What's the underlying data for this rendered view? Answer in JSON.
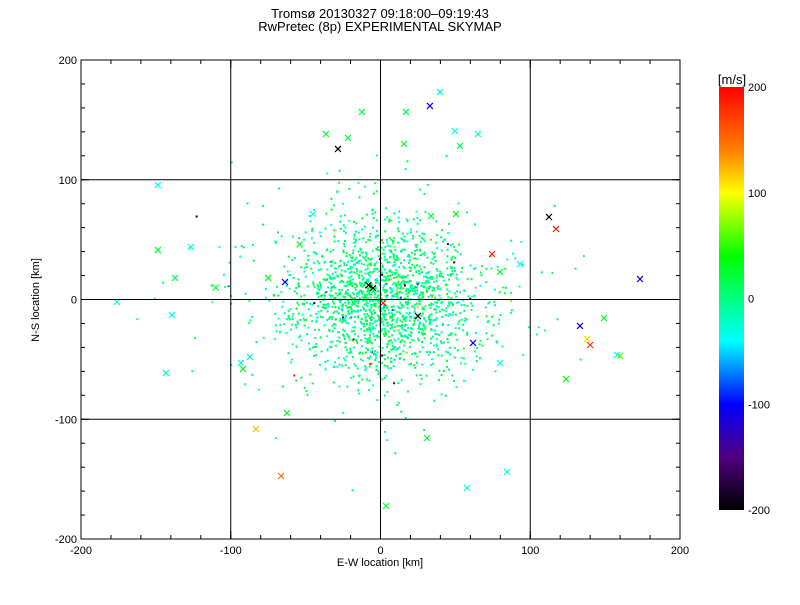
{
  "chart_data": {
    "type": "scatter",
    "title": [
      "Tromsø 20130327 09:18:00–09:19:43",
      "RwPretec (8p) EXPERIMENTAL SKYMAP"
    ],
    "xlabel": "E-W location [km]",
    "ylabel": "N-S location [km]",
    "xlim": [
      -200,
      200
    ],
    "ylim": [
      -200,
      200
    ],
    "xticks": [
      "-200",
      "-100",
      "0",
      "100",
      "200"
    ],
    "yticks": [
      "-200",
      "-100",
      "0",
      "100",
      "200"
    ],
    "grid": [
      -100,
      0,
      100
    ],
    "colorbar": {
      "label": "[m/s]",
      "range": [
        -200,
        200
      ],
      "ticks": [
        "200",
        "100",
        "0",
        "-100",
        "-200"
      ],
      "stops": [
        [
          -200,
          "#000000"
        ],
        [
          -150,
          "#500080"
        ],
        [
          -100,
          "#0000ff"
        ],
        [
          -40,
          "#00ffff"
        ],
        [
          0,
          "#00ff80"
        ],
        [
          40,
          "#00ff00"
        ],
        [
          100,
          "#ffff00"
        ],
        [
          140,
          "#ff8000"
        ],
        [
          200,
          "#ff0000"
        ]
      ]
    },
    "points": [
      {
        "x": -148.6,
        "y": 95.6,
        "v": -40
      },
      {
        "x": -28.4,
        "y": 125.7,
        "v": -200
      },
      {
        "x": 33.0,
        "y": 161.6,
        "v": -100
      },
      {
        "x": 39.7,
        "y": 173.3,
        "v": -35
      },
      {
        "x": -12.4,
        "y": 156.6,
        "v": 20
      },
      {
        "x": 17.0,
        "y": 156.6,
        "v": 20
      },
      {
        "x": -36.4,
        "y": 138.2,
        "v": 25
      },
      {
        "x": -21.7,
        "y": 134.9,
        "v": 20
      },
      {
        "x": 49.7,
        "y": 140.7,
        "v": -30
      },
      {
        "x": 65.1,
        "y": 138.2,
        "v": -20
      },
      {
        "x": 53.0,
        "y": 128.2,
        "v": 15
      },
      {
        "x": 15.7,
        "y": 129.9,
        "v": 20
      },
      {
        "x": 112.5,
        "y": 68.9,
        "v": -200
      },
      {
        "x": 117.2,
        "y": 58.9,
        "v": 190
      },
      {
        "x": 74.5,
        "y": 38.0,
        "v": 185
      },
      {
        "x": 173.3,
        "y": 17.1,
        "v": -110
      },
      {
        "x": 133.2,
        "y": -22.1,
        "v": -110
      },
      {
        "x": 137.9,
        "y": -33.0,
        "v": 110
      },
      {
        "x": 140.0,
        "y": -38.0,
        "v": 180
      },
      {
        "x": 123.9,
        "y": -66.4,
        "v": 30
      },
      {
        "x": 158.0,
        "y": -46.3,
        "v": -40
      },
      {
        "x": 61.8,
        "y": -36.3,
        "v": -100
      },
      {
        "x": 79.8,
        "y": -53.0,
        "v": -40
      },
      {
        "x": -83.1,
        "y": -108.1,
        "v": 120
      },
      {
        "x": -66.4,
        "y": -147.4,
        "v": 150
      },
      {
        "x": 31.0,
        "y": -115.7,
        "v": 30
      },
      {
        "x": 84.5,
        "y": -144.0,
        "v": -35
      },
      {
        "x": 57.8,
        "y": -157.4,
        "v": -30
      },
      {
        "x": 3.7,
        "y": -172.4,
        "v": 20
      },
      {
        "x": -63.8,
        "y": 14.6,
        "v": -110
      },
      {
        "x": -148.6,
        "y": 41.3,
        "v": 30
      },
      {
        "x": -137.2,
        "y": 18.0,
        "v": 20
      },
      {
        "x": -139.3,
        "y": -12.9,
        "v": -35
      },
      {
        "x": -126.6,
        "y": 43.8,
        "v": -30
      },
      {
        "x": -176.0,
        "y": -2.0,
        "v": -30
      },
      {
        "x": -143.3,
        "y": -61.4,
        "v": -30
      },
      {
        "x": 50.4,
        "y": 71.4,
        "v": 40
      },
      {
        "x": 33.7,
        "y": 69.7,
        "v": 25
      },
      {
        "x": -45.1,
        "y": 71.4,
        "v": -30
      },
      {
        "x": -5.0,
        "y": 9.6,
        "v": -200
      },
      {
        "x": 1.7,
        "y": -2.9,
        "v": 190
      },
      {
        "x": 25.0,
        "y": -13.8,
        "v": -200
      },
      {
        "x": -93.2,
        "y": -53.0,
        "v": -30
      },
      {
        "x": -87.2,
        "y": -48.0,
        "v": -30
      },
      {
        "x": -62.5,
        "y": -94.8,
        "v": 25
      },
      {
        "x": -91.8,
        "y": -58.0,
        "v": 25
      },
      {
        "x": 93.2,
        "y": 29.6,
        "v": -30
      },
      {
        "x": 79.8,
        "y": 23.0,
        "v": 25
      },
      {
        "x": 149.3,
        "y": -15.5,
        "v": 25
      },
      {
        "x": -54.0,
        "y": 46.0,
        "v": 25
      },
      {
        "x": -75.0,
        "y": 18.0,
        "v": 30
      },
      {
        "x": -110.0,
        "y": 10.0,
        "v": 20
      },
      {
        "x": 160.0,
        "y": -47.0,
        "v": 60
      },
      {
        "x": -8.0,
        "y": 12.0,
        "v": -200
      }
    ],
    "cloud": {
      "count": 1900,
      "center_km": [
        0,
        0
      ],
      "sigma_km": [
        30,
        30
      ],
      "mean_v": 0,
      "sigma_v": 18
    }
  }
}
